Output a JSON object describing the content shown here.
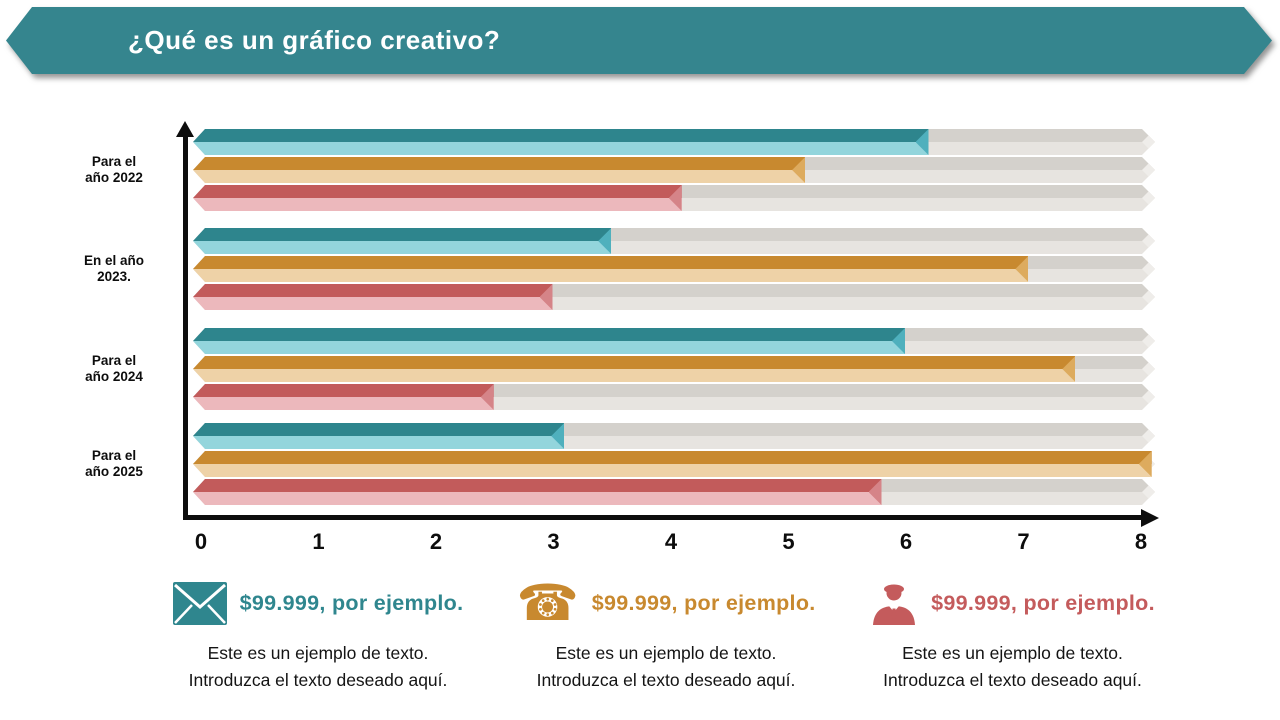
{
  "banner": {
    "title": "¿Qué es un gráfico creativo?",
    "color": "#35858e"
  },
  "chart_data": {
    "type": "bar",
    "orientation": "horizontal",
    "title": "¿Qué es un gráfico creativo?",
    "categories": [
      "Para el\naño 2022",
      "En el año\n2023.",
      "Para el\naño 2024",
      "Para el\naño 2025"
    ],
    "series": [
      {
        "name": "serie-teal",
        "color_dark": "#2e858d",
        "color_light": "#93d5dc",
        "color_tip": "#4fb0bd",
        "values": [
          6.2,
          3.5,
          6.0,
          3.1
        ]
      },
      {
        "name": "serie-orange",
        "color_dark": "#c8892f",
        "color_light": "#eed2a7",
        "color_tip": "#ddab5e",
        "values": [
          5.15,
          7.05,
          7.45,
          8.1
        ]
      },
      {
        "name": "serie-red",
        "color_dark": "#c25b5b",
        "color_light": "#ecb8bc",
        "color_tip": "#d58488",
        "values": [
          4.1,
          3.0,
          2.5,
          5.8
        ]
      }
    ],
    "xlim": [
      0,
      8
    ],
    "x_ticks": [
      "0",
      "1",
      "2",
      "3",
      "4",
      "5",
      "6",
      "7",
      "8"
    ],
    "track_max": 8.2,
    "track_color_dark": "#d4d1cc",
    "track_color_light": "#e7e4e0",
    "track_color_tip": "#efedea",
    "grid": false,
    "legend_position": "bottom"
  },
  "legend": {
    "items": [
      {
        "icon": "envelope-icon",
        "color": "#2f868e",
        "amount": "$99.999, por ejemplo.",
        "line1": "Este es un ejemplo de texto.",
        "line2": "Introduzca el texto deseado aquí."
      },
      {
        "icon": "phone-icon",
        "color": "#c8892f",
        "amount": "$99.999, por ejemplo.",
        "glyph": "☎",
        "line1": "Este es un ejemplo de texto.",
        "line2": "Introduzca el texto deseado aquí."
      },
      {
        "icon": "businessman-icon",
        "color": "#c45b5c",
        "amount": "$99.999, por ejemplo.",
        "line1": "Este es un ejemplo de texto.",
        "line2": "Introduzca el texto deseado aquí."
      }
    ]
  }
}
